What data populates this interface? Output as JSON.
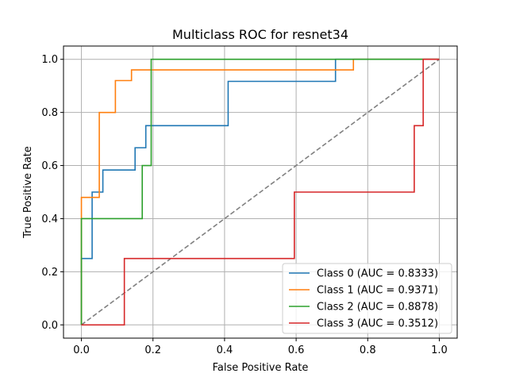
{
  "chart_data": {
    "type": "line",
    "title": "Multiclass ROC for resnet34",
    "xlabel": "False Positive Rate",
    "ylabel": "True Positive Rate",
    "xlim": [
      -0.05,
      1.05
    ],
    "ylim": [
      -0.05,
      1.05
    ],
    "xticks": [
      "0.0",
      "0.2",
      "0.4",
      "0.6",
      "0.8",
      "1.0"
    ],
    "yticks": [
      "0.0",
      "0.2",
      "0.4",
      "0.6",
      "0.8",
      "1.0"
    ],
    "grid": true,
    "legend_position": "lower-right",
    "series": [
      {
        "name": "Class 0 (AUC = 0.8333)",
        "color": "#1f77b4",
        "x": [
          0.0,
          0.0,
          0.0,
          0.03,
          0.03,
          0.06,
          0.06,
          0.15,
          0.15,
          0.18,
          0.18,
          0.41,
          0.41,
          0.71,
          0.71,
          1.0
        ],
        "y": [
          0.0,
          0.083,
          0.25,
          0.25,
          0.5,
          0.5,
          0.583,
          0.583,
          0.667,
          0.667,
          0.75,
          0.75,
          0.917,
          0.917,
          1.0,
          1.0
        ]
      },
      {
        "name": "Class 1 (AUC = 0.9371)",
        "color": "#ff7f0e",
        "x": [
          0.0,
          0.0,
          0.0,
          0.05,
          0.05,
          0.095,
          0.095,
          0.14,
          0.14,
          0.76,
          0.76,
          1.0
        ],
        "y": [
          0.0,
          0.04,
          0.48,
          0.48,
          0.8,
          0.8,
          0.92,
          0.92,
          0.96,
          0.96,
          1.0,
          1.0
        ]
      },
      {
        "name": "Class 2 (AUC = 0.8878)",
        "color": "#2ca02c",
        "x": [
          0.0,
          0.0,
          0.0,
          0.17,
          0.17,
          0.195,
          0.195,
          1.0
        ],
        "y": [
          0.0,
          0.1,
          0.4,
          0.4,
          0.6,
          0.6,
          1.0,
          1.0
        ]
      },
      {
        "name": "Class 3 (AUC = 0.3512)",
        "color": "#d62728",
        "x": [
          0.0,
          0.12,
          0.12,
          0.595,
          0.595,
          0.93,
          0.93,
          0.955,
          0.955,
          1.0
        ],
        "y": [
          0.0,
          0.0,
          0.25,
          0.25,
          0.5,
          0.5,
          0.75,
          0.75,
          1.0,
          1.0
        ]
      }
    ],
    "diagonal": {
      "color": "#808080",
      "x": [
        0,
        1
      ],
      "y": [
        0,
        1
      ]
    }
  }
}
